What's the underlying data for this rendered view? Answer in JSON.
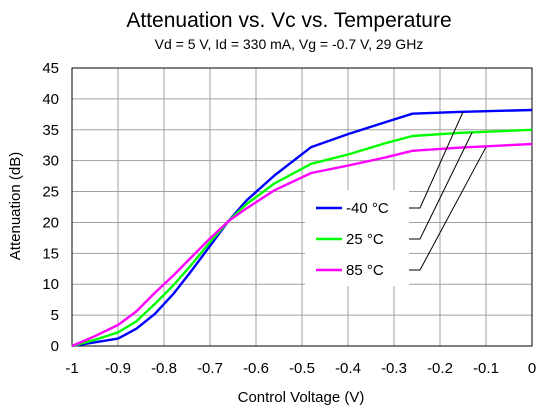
{
  "chart_data": {
    "type": "line",
    "title": "Attenuation vs. Vc vs. Temperature",
    "subtitle": "Vd = 5 V, Id = 330 mA, Vg = -0.7 V, 29 GHz",
    "xlabel": "Control Voltage (V)",
    "ylabel": "Attenuation (dB)",
    "xlim": [
      -1,
      0
    ],
    "ylim": [
      0,
      45
    ],
    "xticks": [
      -1,
      -0.9,
      -0.8,
      -0.7,
      -0.6,
      -0.5,
      -0.4,
      -0.3,
      -0.2,
      -0.1,
      0
    ],
    "xtick_labels": [
      "-1",
      "-0.9",
      "-0.8",
      "-0.7",
      "-0.6",
      "-0.5",
      "-0.4",
      "-0.3",
      "-0.2",
      "-0.1",
      "0"
    ],
    "yticks": [
      0,
      5,
      10,
      15,
      20,
      25,
      30,
      35,
      40,
      45
    ],
    "ytick_labels": [
      "0",
      "5",
      "10",
      "15",
      "20",
      "25",
      "30",
      "35",
      "40",
      "45"
    ],
    "grid": true,
    "legend_position": "center-right",
    "series": [
      {
        "name": "-40 °C",
        "color": "#0000ff",
        "x": [
          -1,
          -0.95,
          -0.9,
          -0.86,
          -0.82,
          -0.78,
          -0.74,
          -0.7,
          -0.66,
          -0.62,
          -0.56,
          -0.48,
          -0.4,
          -0.32,
          -0.26,
          -0.16,
          0
        ],
        "y": [
          0,
          0.6,
          1.2,
          2.8,
          5.2,
          8.4,
          12.2,
          16.2,
          20.2,
          23.6,
          27.6,
          32.2,
          34.3,
          36.2,
          37.6,
          37.9,
          38.2
        ]
      },
      {
        "name": "25 °C",
        "color": "#00ff00",
        "x": [
          -1,
          -0.95,
          -0.9,
          -0.86,
          -0.82,
          -0.78,
          -0.74,
          -0.7,
          -0.66,
          -0.62,
          -0.56,
          -0.48,
          -0.4,
          -0.32,
          -0.26,
          -0.16,
          0
        ],
        "y": [
          0,
          1.0,
          2.2,
          4.0,
          6.8,
          9.8,
          13.2,
          16.8,
          20.2,
          23.0,
          26.3,
          29.5,
          31.0,
          32.8,
          34.0,
          34.5,
          35.0
        ]
      },
      {
        "name": "85 °C",
        "color": "#ff00ff",
        "x": [
          -1,
          -0.95,
          -0.9,
          -0.86,
          -0.82,
          -0.78,
          -0.74,
          -0.7,
          -0.66,
          -0.62,
          -0.56,
          -0.48,
          -0.4,
          -0.32,
          -0.26,
          -0.16,
          0
        ],
        "y": [
          0,
          1.6,
          3.4,
          5.6,
          8.6,
          11.4,
          14.4,
          17.4,
          20.2,
          22.3,
          25.2,
          28.0,
          29.2,
          30.5,
          31.6,
          32.1,
          32.7
        ]
      }
    ]
  }
}
